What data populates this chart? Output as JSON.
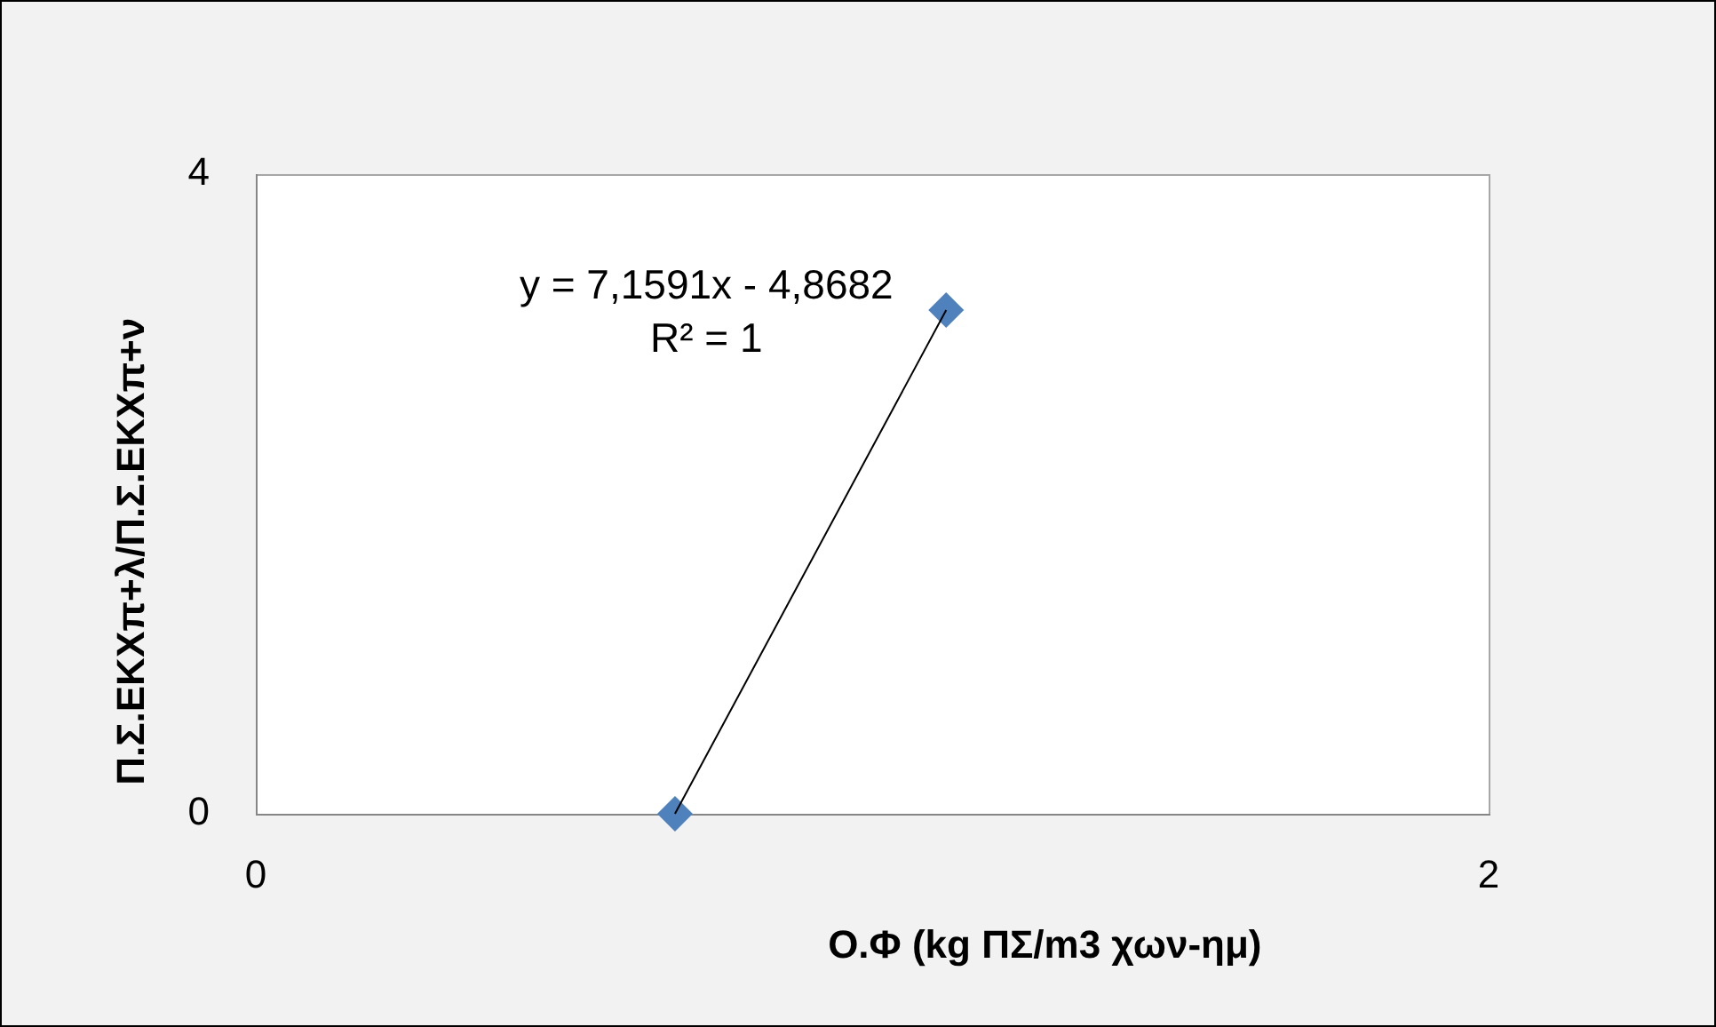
{
  "chart_data": {
    "type": "scatter",
    "xlabel": "Ο.Φ (kg ΠΣ/m3 χων-ημ)",
    "ylabel": "Π.Σ.ΕΚΧπ+λ/Π.Σ.ΕΚΧπ+ν",
    "x": [
      0.68,
      1.12
    ],
    "xlim": [
      0,
      2
    ],
    "xticks": [
      0,
      2
    ],
    "ylim": [
      0,
      4
    ],
    "yticks": [
      0,
      4
    ],
    "grid": false,
    "series": [
      {
        "color": "#4f81bd",
        "values": [
          0,
          3.15
        ],
        "marker": "diamond"
      },
      {
        "type": "line",
        "color": "#000000",
        "values": [
          0,
          3.15
        ],
        "marker": "none",
        "line_style": "solid"
      }
    ],
    "annotations": [
      "y = 7,1591x - 4,8682",
      "R² = 1"
    ]
  }
}
